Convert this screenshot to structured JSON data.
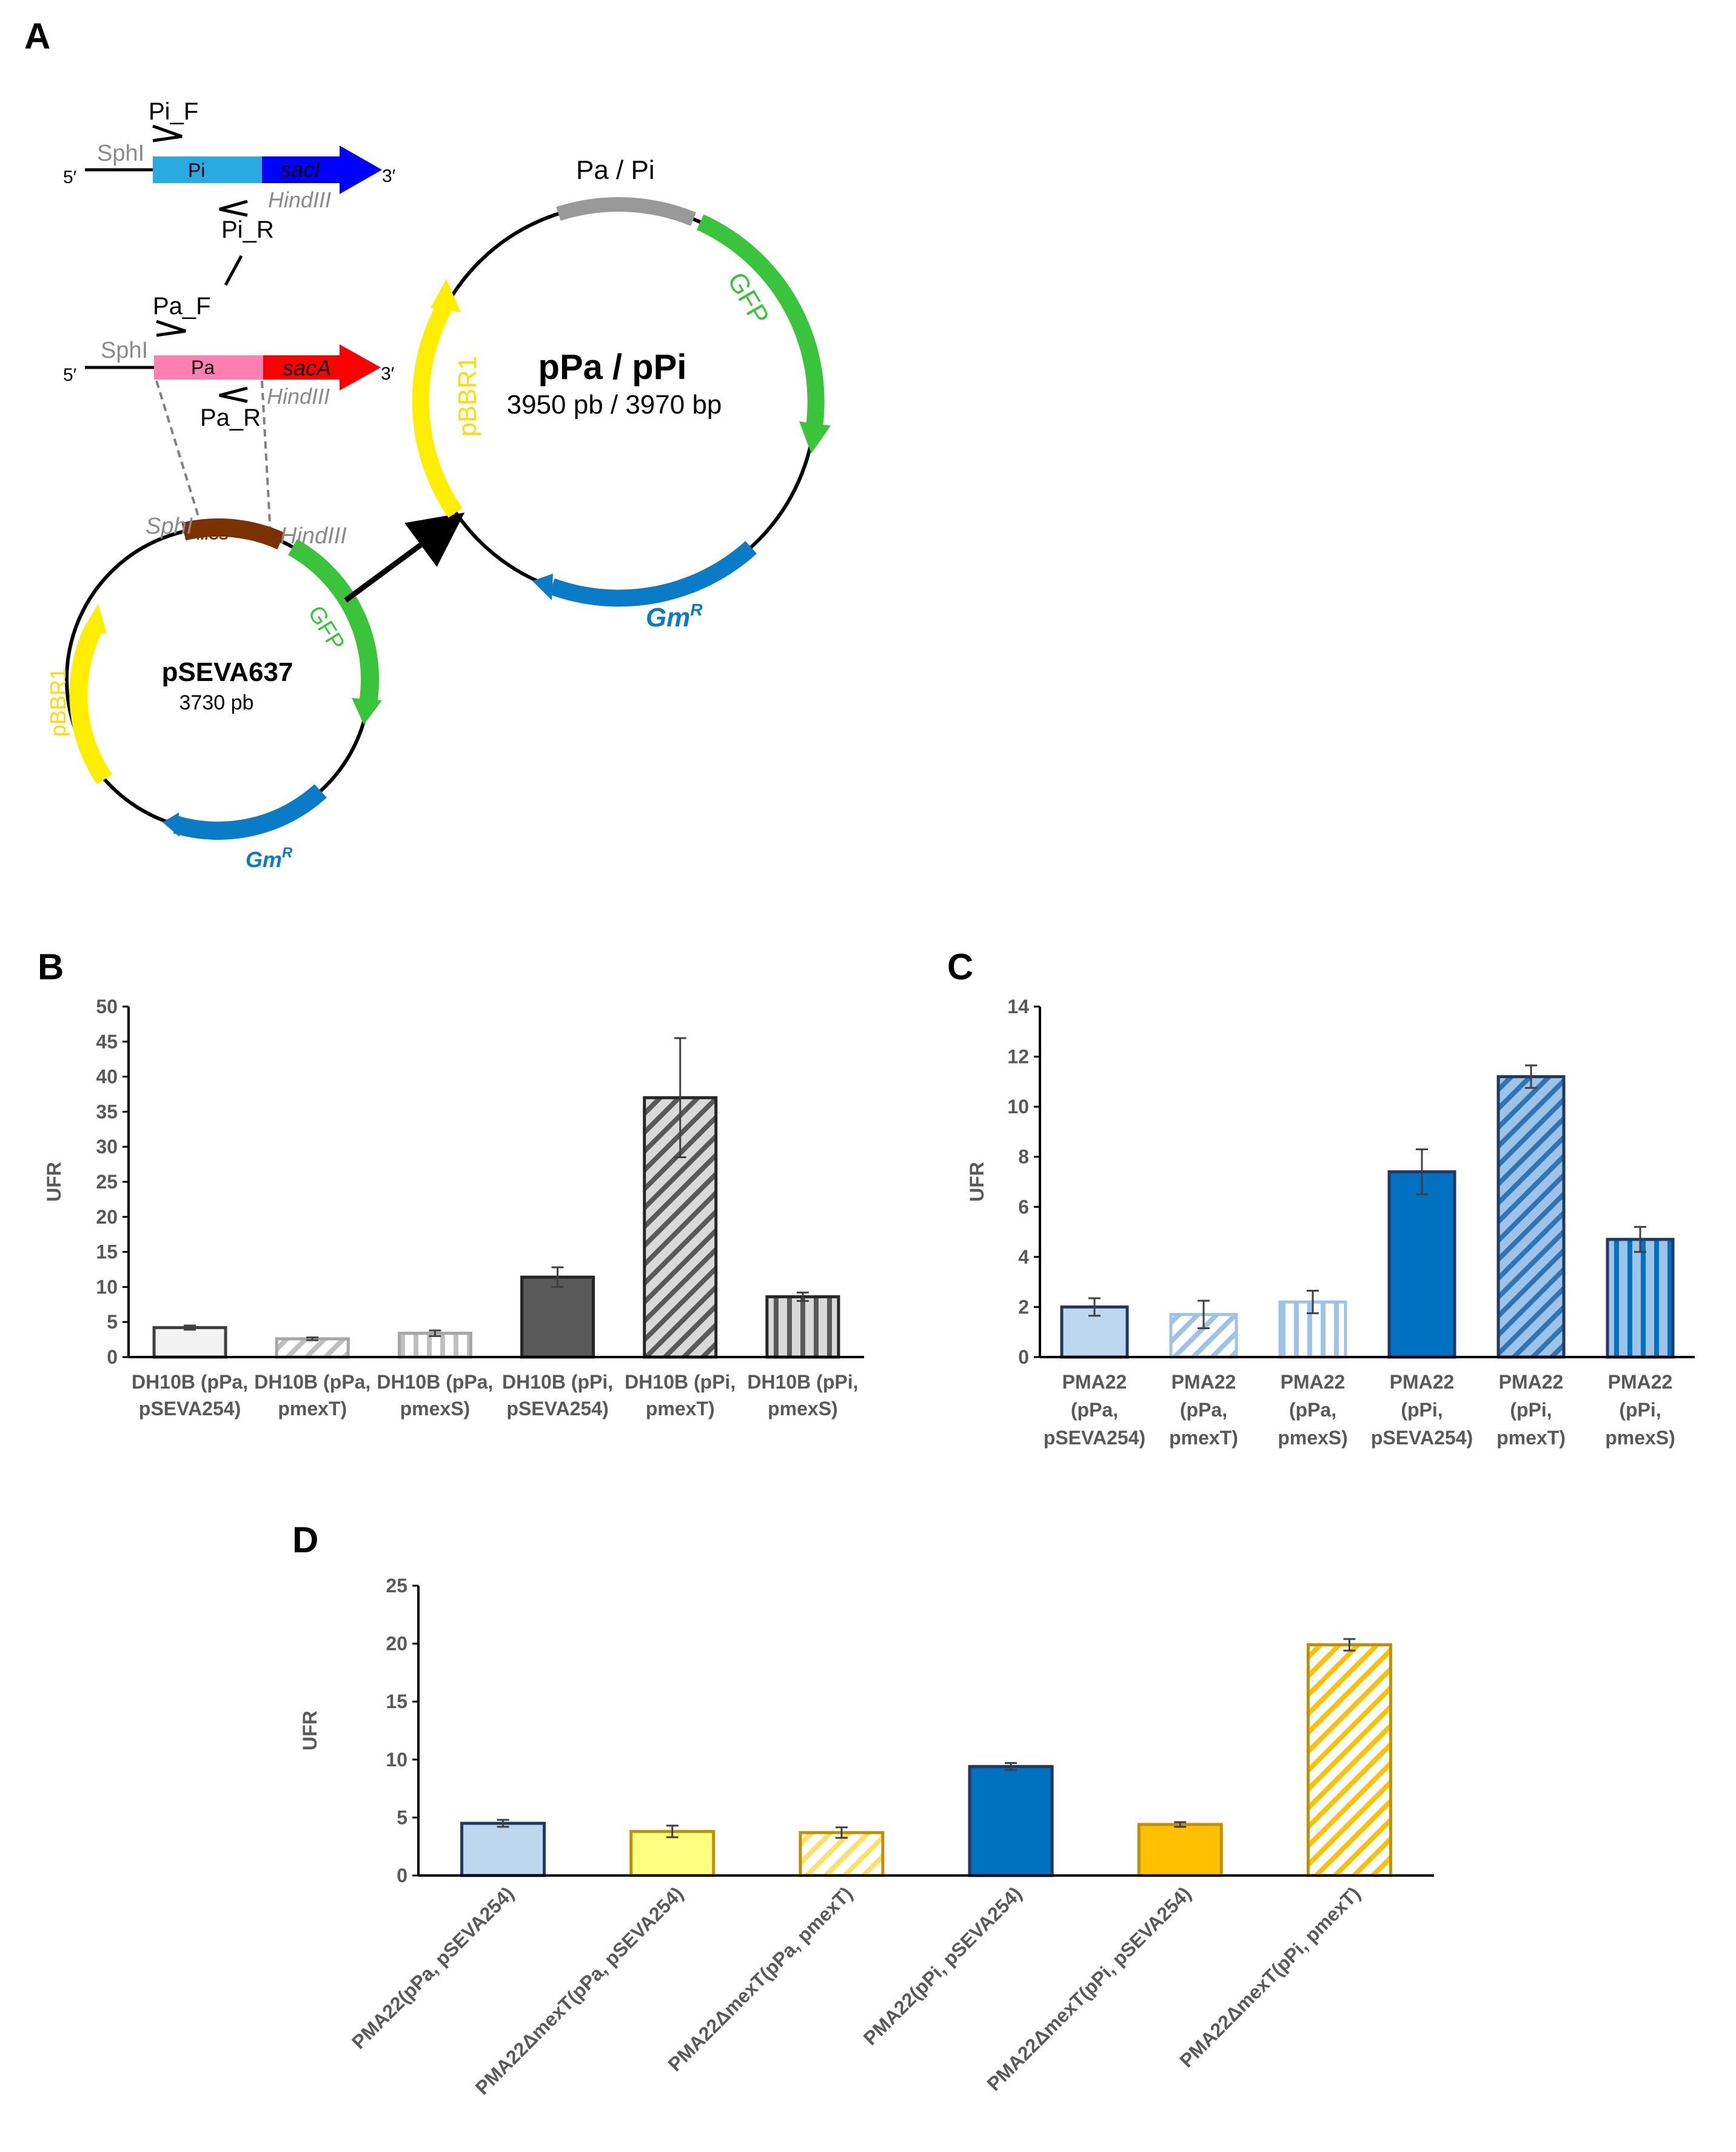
{
  "panel_labels": {
    "a": "A",
    "b": "B",
    "c": "C",
    "d": "D"
  },
  "map": {
    "pi_construct": {
      "primer_f": "Pi_F",
      "primer_r": "Pi_R",
      "site_left": "SphI",
      "site_right": "HindIII",
      "promoter": "Pi",
      "gene": "sacI",
      "five": "5′",
      "three": "3′"
    },
    "pa_construct": {
      "primer_f": "Pa_F",
      "primer_r": "Pa_R",
      "site_left": "SphI",
      "site_right": "HindIII",
      "promoter": "Pa",
      "gene": "sacA",
      "five": "5′",
      "three": "3′"
    },
    "vector": {
      "name": "pSEVA637",
      "size": "3730 pb",
      "mcs": "MCS",
      "site_left": "SphI",
      "site_right": "HindIII",
      "gfp": "GFP",
      "ori": "pBBR1",
      "gm": "Gm",
      "gm_sup": "R"
    },
    "product": {
      "name": "pPa / pPi",
      "size": "3950 pb / 3970 bp",
      "promoter": "Pa / Pi",
      "gfp": "GFP",
      "ori": "pBBR1",
      "gm": "Gm",
      "gm_sup": "R"
    },
    "colors": {
      "pi": "#29abe2",
      "saci": "#0000ff",
      "pa": "#ff7fb0",
      "saca": "#ff0000",
      "gfp": "#39c43b",
      "ori": "#ffee00",
      "gm": "#0a7bc6",
      "mcs": "#7b3100",
      "promoter": "#999999"
    }
  },
  "chart_data": [
    {
      "panel": "B",
      "type": "bar",
      "categories": [
        "DH10B (pPa, pSEVA254)",
        "DH10B (pPa, pmexT)",
        "DH10B (pPa, pmexS)",
        "DH10B (pPi, pSEVA254)",
        "DH10B (pPi, pmexT)",
        "DH10B (pPi, pmexS)"
      ],
      "category_lines": [
        [
          "DH10B (pPa,",
          "pSEVA254)"
        ],
        [
          "DH10B (pPa,",
          "pmexT)"
        ],
        [
          "DH10B (pPa,",
          "pmexS)"
        ],
        [
          "DH10B (pPi,",
          "pSEVA254)"
        ],
        [
          "DH10B (pPi,",
          "pmexT)"
        ],
        [
          "DH10B (pPi,",
          "pmexS)"
        ]
      ],
      "values": [
        4.2,
        2.6,
        3.4,
        11.4,
        37,
        8.6
      ],
      "errors": [
        0.3,
        0.2,
        0.4,
        1.4,
        8.5,
        0.6
      ],
      "ylabel": "UFR",
      "ylim": [
        0,
        50
      ],
      "yticks": [
        0,
        5,
        10,
        15,
        20,
        25,
        30,
        35,
        40,
        45,
        50
      ],
      "styles": [
        {
          "fill": "#f2f2f2",
          "stroke": "#404040",
          "pattern": "solid"
        },
        {
          "fill": "#ffffff",
          "stroke": "#a6a6a6",
          "pattern": "diag",
          "pcolor": "#bfbfbf"
        },
        {
          "fill": "#ffffff",
          "stroke": "#a6a6a6",
          "pattern": "vert",
          "pcolor": "#bfbfbf"
        },
        {
          "fill": "#595959",
          "stroke": "#262626",
          "pattern": "solid"
        },
        {
          "fill": "#d9d9d9",
          "stroke": "#262626",
          "pattern": "diag",
          "pcolor": "#595959"
        },
        {
          "fill": "#d9d9d9",
          "stroke": "#262626",
          "pattern": "vert",
          "pcolor": "#595959"
        }
      ]
    },
    {
      "panel": "C",
      "type": "bar",
      "categories": [
        "PMA22 (pPa, pSEVA254)",
        "PMA22 (pPa, pmexT)",
        "PMA22 (pPa, pmexS)",
        "PMA22 (pPi, pSEVA254)",
        "PMA22 (pPi, pmexT)",
        "PMA22 (pPi, pmexS)"
      ],
      "category_lines": [
        [
          "PMA22",
          "(pPa,",
          "pSEVA254)"
        ],
        [
          "PMA22",
          "(pPa,",
          "pmexT)"
        ],
        [
          "PMA22",
          "(pPa,",
          "pmexS)"
        ],
        [
          "PMA22",
          "(pPi,",
          "pSEVA254)"
        ],
        [
          "PMA22",
          "(pPi,",
          "pmexT)"
        ],
        [
          "PMA22",
          "(pPi,",
          "pmexS)"
        ]
      ],
      "values": [
        2.0,
        1.7,
        2.2,
        7.4,
        11.2,
        4.7
      ],
      "errors": [
        0.35,
        0.55,
        0.45,
        0.9,
        0.45,
        0.5
      ],
      "ylabel": "UFR",
      "ylim": [
        0,
        14
      ],
      "yticks": [
        0,
        2,
        4,
        6,
        8,
        10,
        12,
        14
      ],
      "styles": [
        {
          "fill": "#bdd7ee",
          "stroke": "#1f3864",
          "pattern": "solid"
        },
        {
          "fill": "#ffffff",
          "stroke": "#9dc3e6",
          "pattern": "diag",
          "pcolor": "#9dc3e6"
        },
        {
          "fill": "#ffffff",
          "stroke": "#9dc3e6",
          "pattern": "vert",
          "pcolor": "#9dc3e6"
        },
        {
          "fill": "#0070c0",
          "stroke": "#1f3864",
          "pattern": "solid"
        },
        {
          "fill": "#9dc3e6",
          "stroke": "#1f3864",
          "pattern": "diag",
          "pcolor": "#2e75b6"
        },
        {
          "fill": "#9dc3e6",
          "stroke": "#1f3864",
          "pattern": "vert",
          "pcolor": "#0070c0"
        }
      ]
    },
    {
      "panel": "D",
      "type": "bar",
      "categories": [
        "PMA22(pPa, pSEVA254)",
        "PMA22ΔmexT(pPa, pSEVA254)",
        "PMA22ΔmexT(pPa, pmexT)",
        "PMA22(pPi, pSEVA254)",
        "PMA22ΔmexT(pPi, pSEVA254)",
        "PMA22ΔmexT(pPi, pmexT)"
      ],
      "values": [
        4.5,
        3.8,
        3.7,
        9.4,
        4.4,
        19.9
      ],
      "errors": [
        0.3,
        0.5,
        0.45,
        0.3,
        0.2,
        0.5
      ],
      "ylabel": "UFR",
      "ylim": [
        0,
        25
      ],
      "yticks": [
        0,
        5,
        10,
        15,
        20,
        25
      ],
      "styles": [
        {
          "fill": "#bdd7ee",
          "stroke": "#1f3864",
          "pattern": "solid"
        },
        {
          "fill": "#ffff80",
          "stroke": "#bf9000",
          "pattern": "solid"
        },
        {
          "fill": "#ffffff",
          "stroke": "#bf9000",
          "pattern": "diag",
          "pcolor": "#ffe066"
        },
        {
          "fill": "#0070c0",
          "stroke": "#1f3864",
          "pattern": "solid"
        },
        {
          "fill": "#ffc000",
          "stroke": "#bf9000",
          "pattern": "solid"
        },
        {
          "fill": "#ffffff",
          "stroke": "#bf9000",
          "pattern": "diag",
          "pcolor": "#ffc000"
        }
      ]
    }
  ]
}
